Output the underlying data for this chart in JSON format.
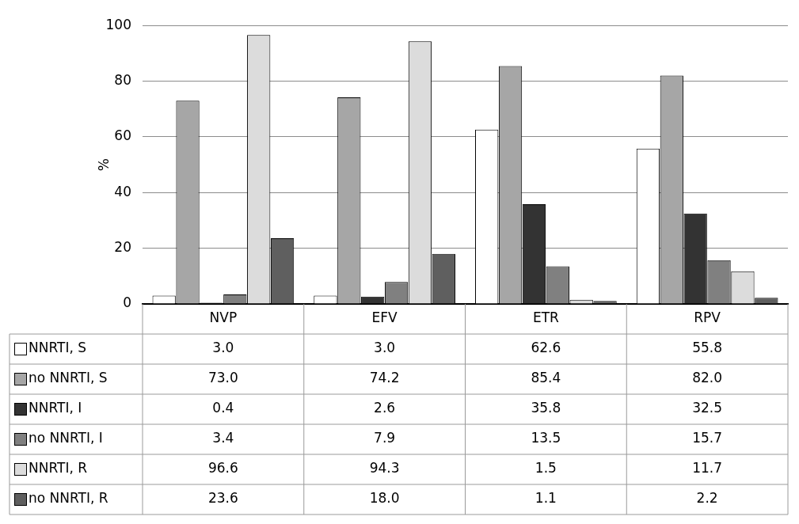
{
  "chart_data": {
    "type": "bar",
    "ylabel": "%",
    "categories": [
      "NVP",
      "EFV",
      "ETR",
      "RPV"
    ],
    "series": [
      {
        "name": "NNRTI, S",
        "color": "#ffffff",
        "values": [
          3.0,
          3.0,
          62.6,
          55.8
        ],
        "value_labels": [
          "3.0",
          "3.0",
          "62.6",
          "55.8"
        ]
      },
      {
        "name": "no NNRTI, S",
        "color": "#a6a6a6",
        "values": [
          73.0,
          74.2,
          85.4,
          82.0
        ],
        "value_labels": [
          "73.0",
          "74.2",
          "85.4",
          "82.0"
        ]
      },
      {
        "name": "NNRTI, I",
        "color": "#333333",
        "values": [
          0.4,
          2.6,
          35.8,
          32.5
        ],
        "value_labels": [
          "0.4",
          "2.6",
          "35.8",
          "32.5"
        ]
      },
      {
        "name": "no NNRTI, I",
        "color": "#808080",
        "values": [
          3.4,
          7.9,
          13.5,
          15.7
        ],
        "value_labels": [
          "3.4",
          "7.9",
          "13.5",
          "15.7"
        ]
      },
      {
        "name": "NNRTI, R",
        "color": "#dcdcdc",
        "values": [
          96.6,
          94.3,
          1.5,
          11.7
        ],
        "value_labels": [
          "96.6",
          "94.3",
          "1.5",
          "11.7"
        ]
      },
      {
        "name": "no NNRTI, R",
        "color": "#5f5f5f",
        "values": [
          23.6,
          18.0,
          1.1,
          2.2
        ],
        "value_labels": [
          "23.6",
          "18.0",
          "1.1",
          "2.2"
        ]
      }
    ],
    "ylim": [
      0,
      100
    ],
    "yticks": [
      0,
      20,
      40,
      60,
      80,
      100
    ],
    "grid": "y",
    "legend": "bottom"
  }
}
